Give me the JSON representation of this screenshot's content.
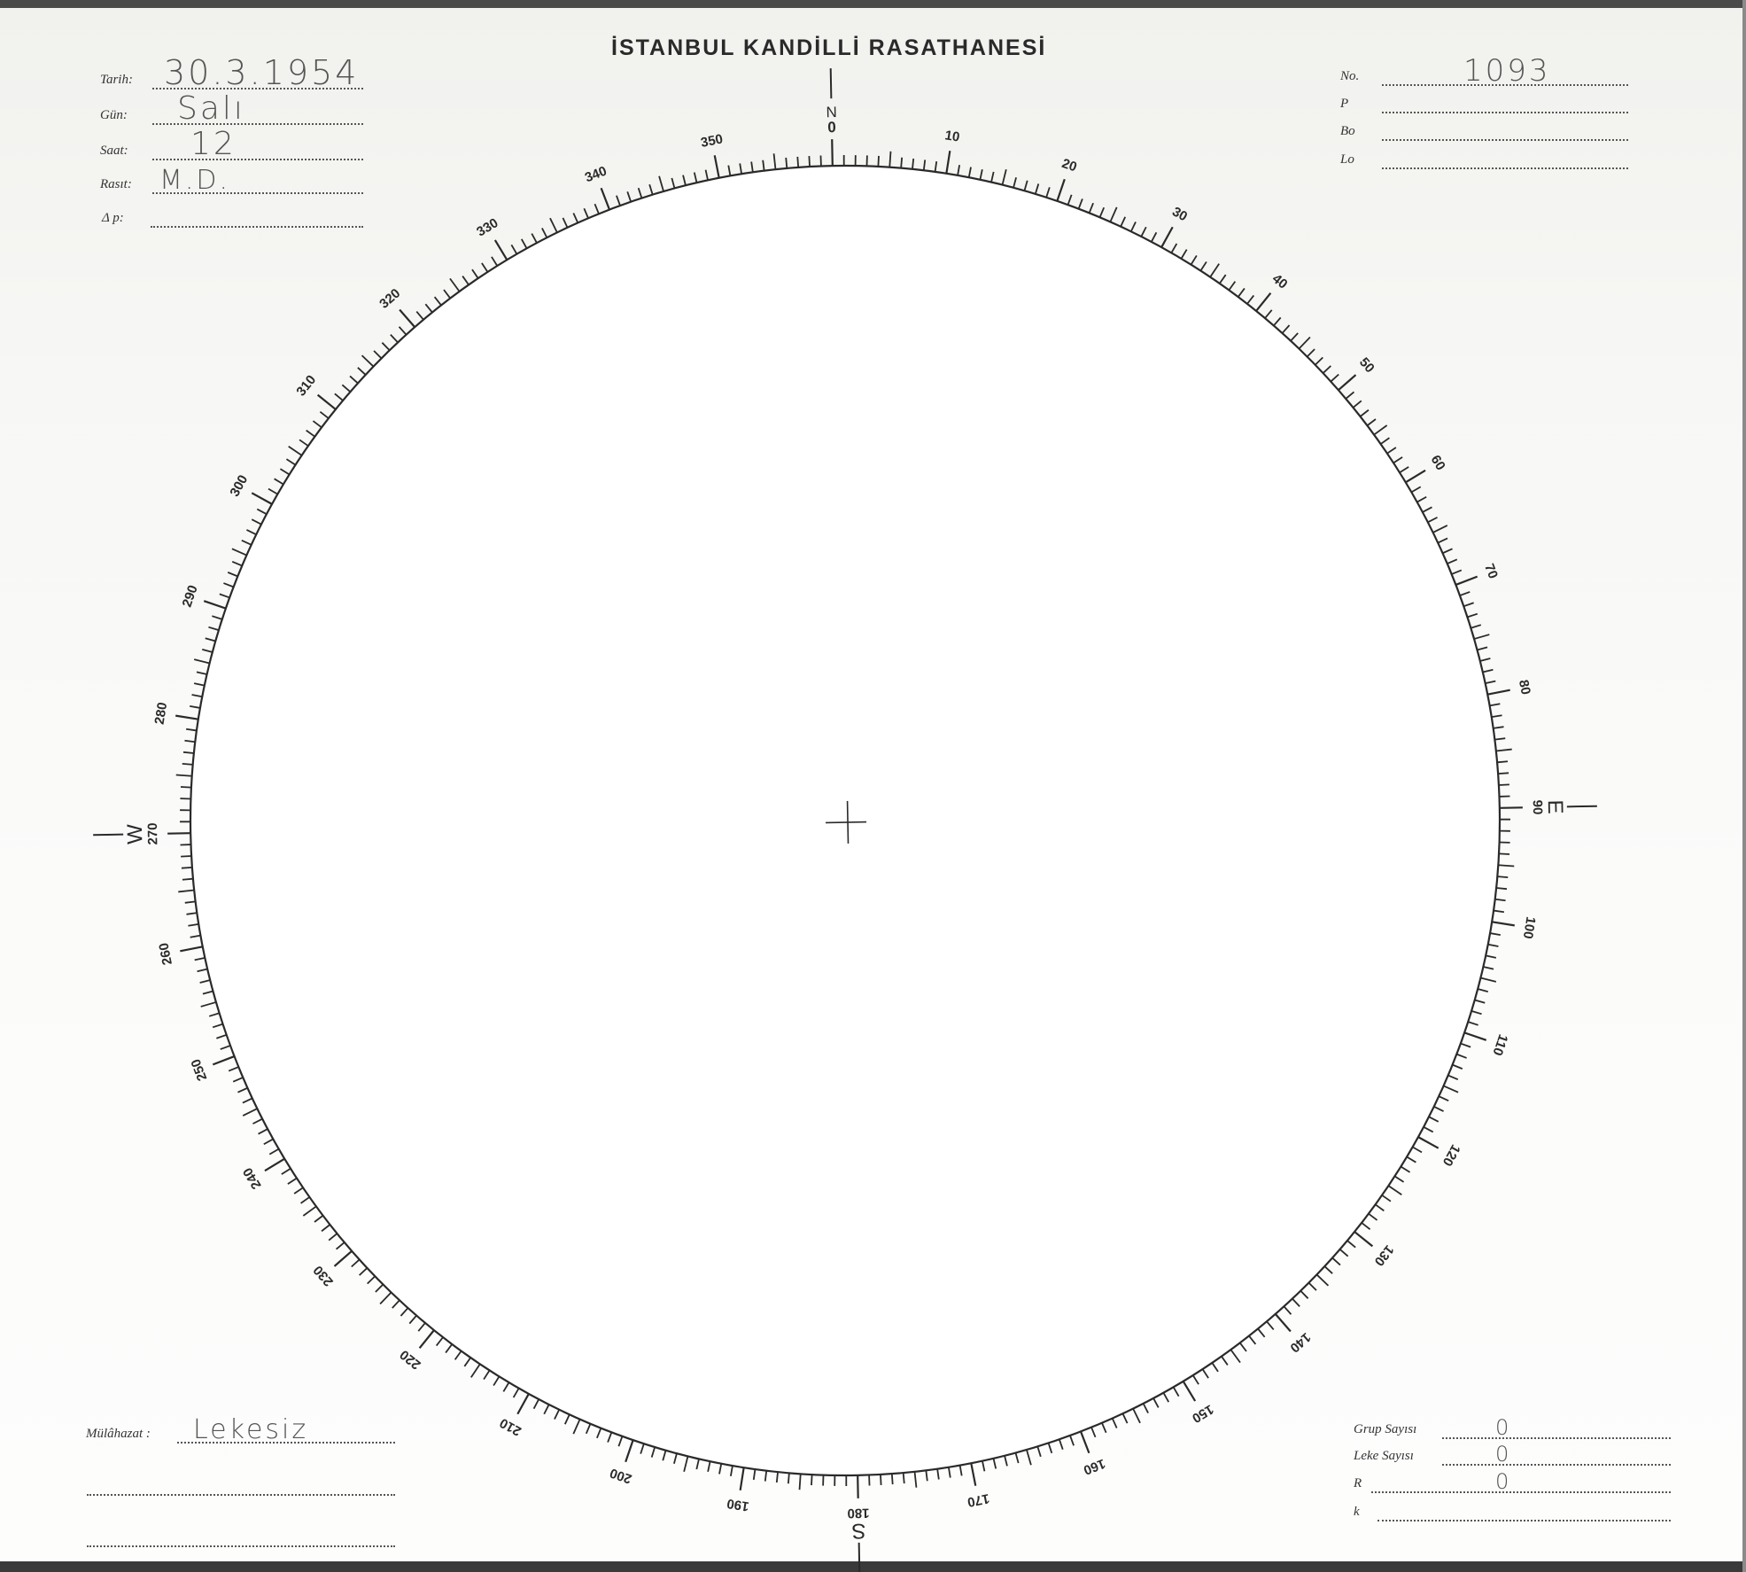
{
  "form": {
    "title": "İSTANBUL KANDİLLİ RASATHANESİ",
    "left_fields": [
      {
        "label": "Tarih:",
        "value": "30.3.1954"
      },
      {
        "label": "Gün:",
        "value": "Salı"
      },
      {
        "label": "Saat:",
        "value": "12"
      },
      {
        "label": "Rasıt:",
        "value": "M.D."
      },
      {
        "label": "Δ p:",
        "value": ""
      }
    ],
    "right_fields": [
      {
        "label": "No.",
        "value": "1093"
      },
      {
        "label": "P",
        "value": ""
      },
      {
        "label": "Bo",
        "value": ""
      },
      {
        "label": "Lo",
        "value": ""
      }
    ],
    "remarks": {
      "label": "Mülâhazat :",
      "value": "Lekesiz"
    },
    "counts": [
      {
        "label": "Grup Sayısı",
        "value": "0"
      },
      {
        "label": "Leke Sayısı",
        "value": "0"
      },
      {
        "label": "R",
        "value": "0"
      },
      {
        "label": "k",
        "value": ""
      }
    ]
  },
  "dial": {
    "tick_labels": [
      "0",
      "10",
      "20",
      "30",
      "40",
      "50",
      "60",
      "70",
      "80",
      "90",
      "100",
      "110",
      "120",
      "130",
      "140",
      "150",
      "160",
      "170",
      "180",
      "190",
      "200",
      "210",
      "220",
      "230",
      "240",
      "250",
      "260",
      "270",
      "280",
      "290",
      "300",
      "310",
      "320",
      "330",
      "340",
      "350"
    ],
    "cardinals": {
      "north": "N",
      "east": "E",
      "south": "S",
      "west": "W"
    }
  },
  "colors": {
    "ink": "#2a2a2a",
    "pencil": "#5a5a5a",
    "paper": "#f7f7f5"
  }
}
